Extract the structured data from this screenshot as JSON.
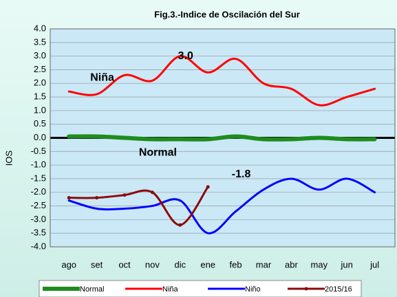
{
  "chart_data": {
    "type": "line",
    "title": "Fig.3.-Indice de Oscilación del Sur",
    "y_label": "IOS",
    "categories": [
      "ago",
      "set",
      "oct",
      "nov",
      "dic",
      "ene",
      "feb",
      "mar",
      "abr",
      "may",
      "jun",
      "jul"
    ],
    "series": [
      {
        "name": "Normal",
        "color": "#1e8c1e",
        "width": 6,
        "markers": false,
        "values": [
          0.05,
          0.05,
          0,
          -0.05,
          -0.05,
          -0.05,
          0.05,
          -0.05,
          -0.05,
          0,
          -0.05,
          -0.05
        ]
      },
      {
        "name": "Niña",
        "color": "#ff0000",
        "width": 3,
        "markers": false,
        "values": [
          1.7,
          1.6,
          2.3,
          2.1,
          3.0,
          2.4,
          2.9,
          2.0,
          1.8,
          1.2,
          1.5,
          1.8
        ]
      },
      {
        "name": "Niño",
        "color": "#0000ff",
        "width": 3,
        "markers": false,
        "values": [
          -2.3,
          -2.6,
          -2.6,
          -2.5,
          -2.3,
          -3.5,
          -2.7,
          -1.9,
          -1.5,
          -1.9,
          -1.5,
          -2.0
        ]
      },
      {
        "name": "2015/16",
        "color": "#8b0a0a",
        "width": 3,
        "markers": true,
        "values": [
          -2.2,
          -2.2,
          -2.1,
          -2.0,
          -3.2,
          -1.8,
          null,
          null,
          null,
          null,
          null,
          null
        ]
      }
    ],
    "annotations": [
      {
        "text": "3.0",
        "x": "dic",
        "y": 3.0
      },
      {
        "text": "Niña",
        "x": "set",
        "y": 2.2
      },
      {
        "text": "Normal",
        "x": "nov",
        "y": -0.55
      },
      {
        "text": "-1.8",
        "x": "feb",
        "y": -1.35
      }
    ],
    "ylim": [
      -4.0,
      4.0
    ],
    "yticks": [
      {
        "value": 4.0,
        "label": "4.0"
      },
      {
        "value": 3.5,
        "label": "3.5"
      },
      {
        "value": 3.0,
        "label": "3.0"
      },
      {
        "value": 2.5,
        "label": "2.5"
      },
      {
        "value": 2.0,
        "label": "2.0"
      },
      {
        "value": 1.5,
        "label": "1.5"
      },
      {
        "value": 1.0,
        "label": "1.0"
      },
      {
        "value": 0.5,
        "label": "0.5"
      },
      {
        "value": 0,
        "label": "0.0"
      },
      {
        "value": -0.5,
        "label": "-0.5"
      },
      {
        "value": -1.0,
        "label": "-1.0"
      },
      {
        "value": -1.5,
        "label": "-1.5"
      },
      {
        "value": -2.0,
        "label": "-2.0"
      },
      {
        "value": -2.5,
        "label": "-2.5"
      },
      {
        "value": -3.0,
        "label": "-3.0"
      },
      {
        "value": -3.5,
        "label": "-3.5"
      },
      {
        "value": -4.0,
        "label": "-4.0"
      }
    ],
    "grid": true,
    "legend": "bottom"
  }
}
